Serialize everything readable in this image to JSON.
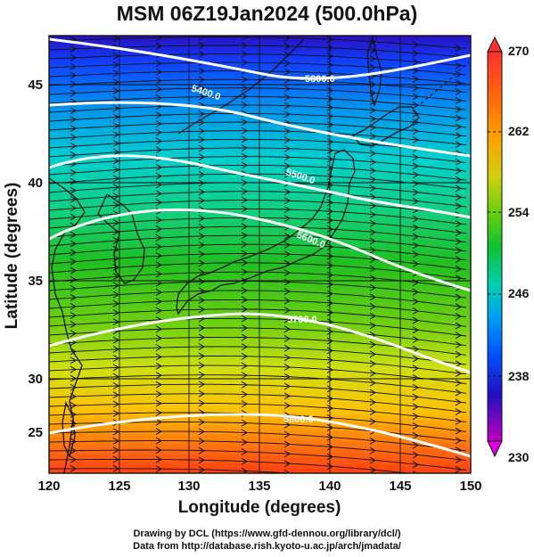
{
  "header": {
    "title": "MSM 06Z19Jan2024 (500.0hPa)"
  },
  "axes": {
    "xlabel": "Longitude (degrees)",
    "ylabel": "Latitude  (degrees)",
    "xrange": [
      120,
      150
    ],
    "yrange": [
      22.5,
      47.6
    ],
    "xticks": [
      "120",
      "125",
      "130",
      "135",
      "140",
      "145",
      "150"
    ],
    "yticks": [
      "25",
      "30",
      "35",
      "40",
      "45"
    ],
    "grid": true
  },
  "colorbar": {
    "labels": [
      "270",
      "262",
      "254",
      "246",
      "238",
      "230"
    ],
    "range": [
      230,
      270
    ],
    "colors": [
      "#c000c0",
      "#3020b0",
      "#0050ff",
      "#00a0f0",
      "#00d0c0",
      "#10c030",
      "#80d010",
      "#d0d010",
      "#ffa000",
      "#ff5010",
      "#ff3030"
    ]
  },
  "contours": {
    "labels": [
      "5300.0",
      "5400.0",
      "5500.0",
      "5600.0",
      "5700.0",
      "5800.0"
    ]
  },
  "credits": {
    "line1": "Drawing by DCL (https://www.gfd-dennou.org/library/dcl/)",
    "line2": "Data from http://database.rish.kyoto-u.ac.jp/arch/jmadata/"
  },
  "map_data": {
    "field": "temperature (K) at 500 hPa",
    "overlays": [
      "streamlines",
      "geopotential height contours",
      "coastlines",
      "lat/lon grid"
    ]
  }
}
